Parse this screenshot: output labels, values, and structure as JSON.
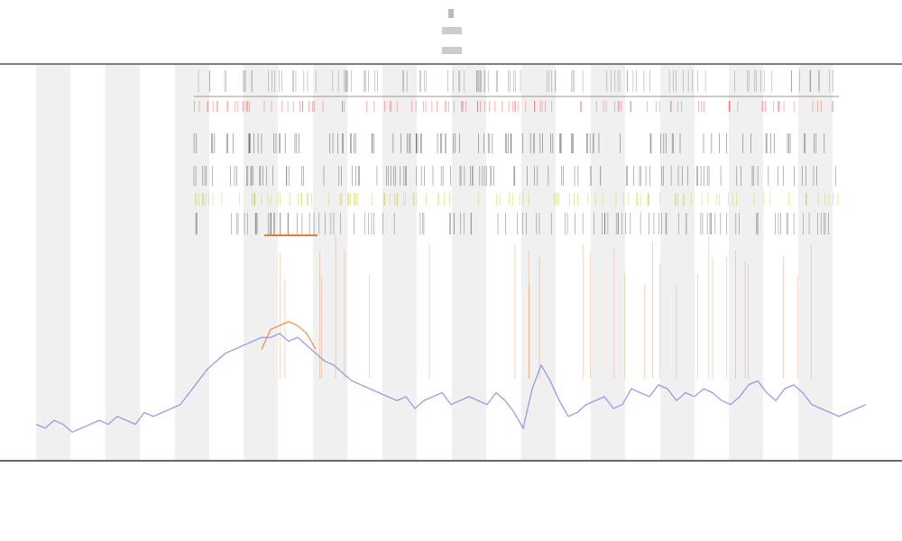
{
  "chart_data": {
    "type": "line",
    "x": [
      0,
      1,
      2,
      3,
      4,
      5,
      6,
      7,
      8,
      9,
      10,
      11,
      12,
      13,
      14,
      15,
      16,
      17,
      18,
      19,
      20,
      21,
      22,
      23,
      24,
      25,
      26,
      27,
      28,
      29,
      30,
      31,
      32,
      33,
      34,
      35,
      36,
      37,
      38,
      39,
      40,
      41,
      42,
      43,
      44,
      45,
      46,
      47,
      48,
      49,
      50,
      51,
      52,
      53,
      54,
      55,
      56,
      57,
      58,
      59,
      60,
      61,
      62,
      63,
      64,
      65,
      66,
      67,
      68,
      69,
      70,
      71,
      72,
      73,
      74,
      75,
      76,
      77,
      78,
      79,
      80,
      81,
      82,
      83,
      84,
      85,
      86,
      87,
      88,
      89,
      90,
      91,
      92
    ],
    "xlim": [
      0,
      92
    ],
    "ylim": [
      0,
      100
    ],
    "series": [
      {
        "color": "#8084e6",
        "values": [
          9,
          8,
          10,
          9,
          7,
          8,
          9,
          10,
          9,
          11,
          10,
          9,
          12,
          11,
          12,
          13,
          14,
          17,
          20,
          23,
          25,
          27,
          28,
          29,
          30,
          31,
          31,
          32,
          30,
          31,
          29,
          27,
          25,
          24,
          22,
          20,
          19,
          18,
          17,
          16,
          15,
          16,
          13,
          15,
          16,
          17,
          14,
          15,
          16,
          15,
          14,
          17,
          15,
          12,
          8,
          18,
          24,
          20,
          15,
          11,
          12,
          14,
          15,
          16,
          13,
          14,
          18,
          17,
          16,
          19,
          18,
          15,
          17,
          16,
          18,
          17,
          15,
          14,
          16,
          19,
          20,
          17,
          15,
          18,
          19,
          17,
          14,
          13,
          12,
          11,
          12,
          13,
          14
        ]
      },
      {
        "color": "#e07b39",
        "values": [
          null,
          null,
          null,
          null,
          null,
          null,
          null,
          null,
          null,
          null,
          null,
          null,
          null,
          null,
          null,
          null,
          null,
          null,
          null,
          null,
          null,
          null,
          null,
          null,
          null,
          28,
          33,
          34,
          35,
          34,
          32,
          28,
          null,
          null,
          null,
          null,
          null,
          null,
          null,
          null,
          null,
          null,
          null,
          null,
          null,
          null,
          null,
          null,
          null,
          null,
          null,
          null,
          null,
          null,
          null,
          null,
          null,
          null,
          null,
          null,
          null,
          null,
          null,
          null,
          null,
          null,
          null,
          null,
          null,
          null,
          null,
          null,
          null,
          null,
          null,
          null,
          null,
          null,
          null,
          null,
          null,
          null,
          null,
          null,
          null,
          null,
          null,
          null,
          null,
          null,
          null,
          null,
          null
        ]
      }
    ]
  }
}
